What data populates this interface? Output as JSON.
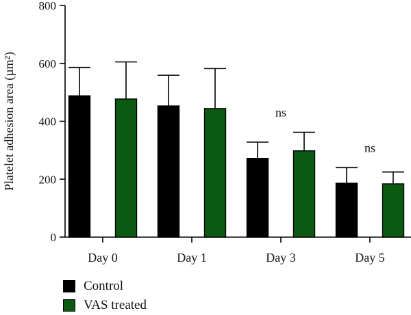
{
  "chart_data": {
    "type": "bar",
    "title": "",
    "xlabel": "",
    "ylabel": "Platelet adhesion area (µm²)",
    "ylim": [
      0,
      800
    ],
    "yticks": [
      "0",
      "200",
      "400",
      "600",
      "800"
    ],
    "categories": [
      "Day 0",
      "Day 1",
      "Day 3",
      "Day 5"
    ],
    "series": [
      {
        "name": "Control",
        "color": "#000000",
        "values": [
          488,
          453,
          272,
          186
        ],
        "errors": [
          98,
          106,
          56,
          54
        ]
      },
      {
        "name": "VAS treated",
        "color": "#0c5a12",
        "values": [
          477,
          444,
          298,
          184
        ],
        "errors": [
          128,
          138,
          64,
          41
        ]
      }
    ],
    "annotations": [
      {
        "category": "Day 3",
        "text": "ns"
      },
      {
        "category": "Day 5",
        "text": "ns"
      }
    ],
    "legend_position": "bottom-left",
    "grid": false
  }
}
